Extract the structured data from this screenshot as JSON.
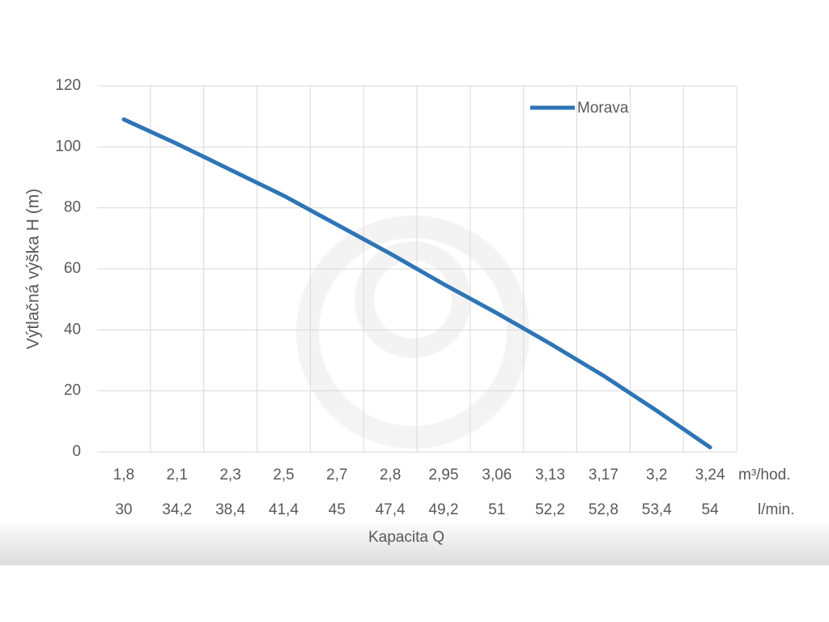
{
  "chart_data": {
    "type": "line",
    "x_label": "Kapacita Q",
    "y_label": "Výtlačná výška H (m)",
    "categories": [
      "1,8",
      "2,1",
      "2,3",
      "2,5",
      "2,7",
      "2,8",
      "2,95",
      "3,06",
      "3,13",
      "3,17",
      "3,2",
      "3,24"
    ],
    "categories_secondary": [
      "30",
      "34,2",
      "38,4",
      "41,4",
      "45",
      "47,4",
      "49,2",
      "51",
      "52,2",
      "52,8",
      "53,4",
      "54"
    ],
    "category_units": [
      "m³/hod.",
      "l/min."
    ],
    "series": [
      {
        "name": "Morava",
        "color": "#2e75b6",
        "values": [
          109,
          101,
          92.5,
          84,
          74.5,
          65,
          55,
          45.5,
          35.5,
          25,
          13.5,
          1.5
        ]
      }
    ],
    "ylim": [
      0,
      120
    ],
    "yticks": [
      0,
      20,
      40,
      60,
      80,
      100,
      120
    ],
    "grid": true,
    "legend": "top-right"
  }
}
